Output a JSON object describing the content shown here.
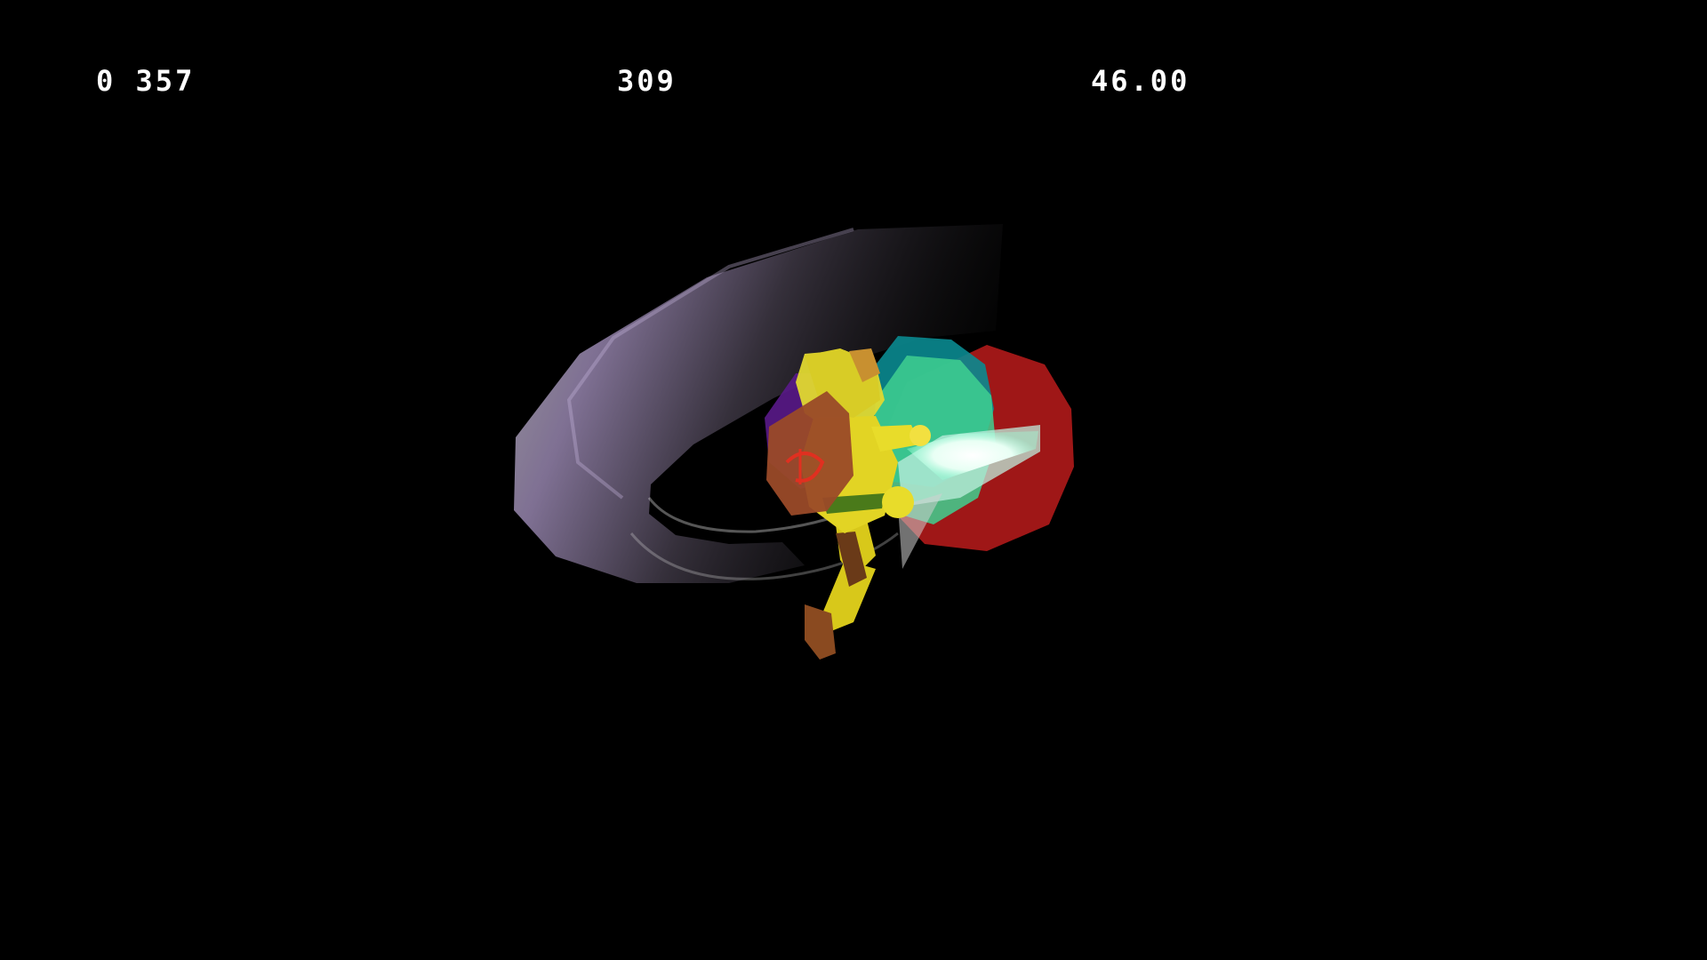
{
  "hud": {
    "left_value": "0 357",
    "center_value": "309",
    "right_value": "46.00"
  },
  "scene": {
    "background_color": "#000000",
    "character": "link-character",
    "effects": [
      "sword-swing-trail",
      "hitbox-bubbles",
      "sword-flash"
    ],
    "hitbox_colors": {
      "red": "#a81818",
      "teal": "#0a8a90",
      "green": "#40d090",
      "purple": "#5a1a8a",
      "yellow": "#e8e020"
    },
    "trail_colors": {
      "grey": "#9a9a9a",
      "purple": "#7a5a9a"
    }
  }
}
